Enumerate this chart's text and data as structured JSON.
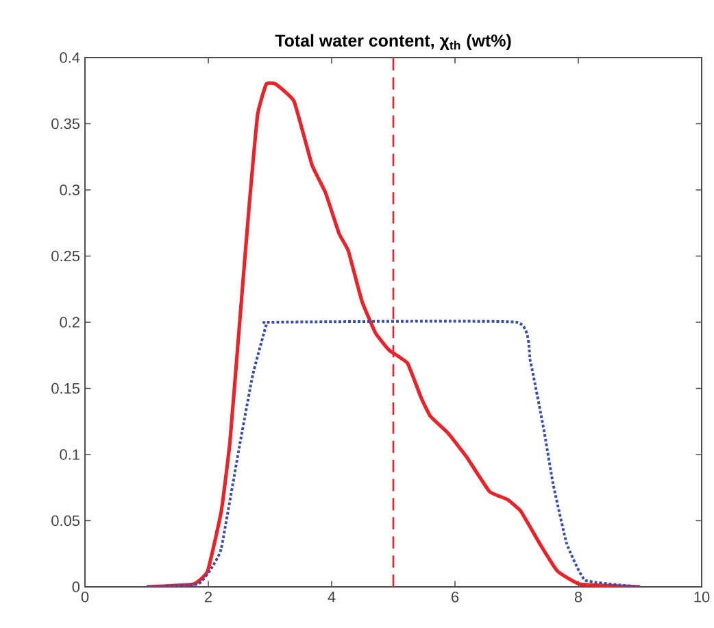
{
  "chart_data": {
    "type": "line",
    "title": "Total water content, χ$_{th}$ (wt%)",
    "xlim": [
      0,
      10
    ],
    "ylim": [
      0,
      0.4
    ],
    "xticks": [
      0,
      2,
      4,
      6,
      8,
      10
    ],
    "yticks": [
      0,
      0.05,
      0.1,
      0.15,
      0.2,
      0.25,
      0.3,
      0.35,
      0.4
    ],
    "grid": false,
    "marker": "none",
    "series": [
      {
        "color": "#e8232a",
        "line_style": "solid",
        "x": [
          1,
          1.76,
          1.99,
          2.21,
          2.35,
          2.5,
          2.65,
          2.8,
          2.94,
          3.09,
          3.39,
          3.68,
          3.9,
          4.12,
          4.27,
          4.49,
          4.71,
          4.93,
          5.23,
          5.45,
          5.6,
          5.89,
          6.19,
          6.56,
          6.85,
          7.07,
          7.37,
          7.66,
          8.03,
          9
        ],
        "values": [
          0,
          0.002,
          0.012,
          0.057,
          0.109,
          0.195,
          0.281,
          0.357,
          0.38,
          0.38,
          0.367,
          0.319,
          0.298,
          0.267,
          0.254,
          0.216,
          0.192,
          0.179,
          0.169,
          0.143,
          0.129,
          0.116,
          0.098,
          0.072,
          0.066,
          0.057,
          0.033,
          0.012,
          0.002,
          0
        ]
      },
      {
        "color": "#3b4fa8",
        "line_style": "dotted",
        "x": [
          1,
          1.83,
          2.05,
          2.21,
          2.5,
          2.72,
          2.94,
          3.02,
          7.0,
          7.22,
          7.44,
          7.59,
          7.81,
          8.11,
          9
        ],
        "values": [
          0,
          0.002,
          0.014,
          0.029,
          0.105,
          0.16,
          0.198,
          0.2,
          0.2,
          0.171,
          0.119,
          0.078,
          0.033,
          0.005,
          0
        ]
      }
    ],
    "ref_lines": [
      {
        "axis": "x",
        "value": 5,
        "color": "#e8232a",
        "line_style": "dashed"
      }
    ]
  }
}
